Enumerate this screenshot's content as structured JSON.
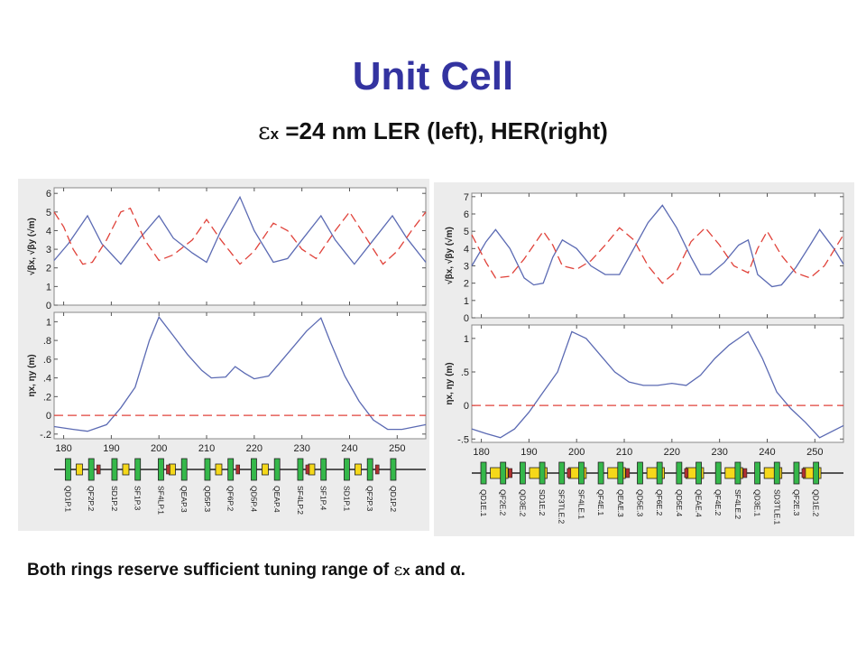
{
  "title": "Unit Cell",
  "subtitle": {
    "epsilon": "ε",
    "epsilon_sub": "x",
    "text": " =24 nm LER (left), HER(right)"
  },
  "footnote": {
    "prefix": "Both rings reserve sufficient tuning range of ",
    "epsilon": "ε",
    "epsilon_sub": "x",
    "suffix": " and α."
  },
  "colors": {
    "title": "#3333a0",
    "beta_x": "#5b6ab3",
    "beta_y": "#e0423a",
    "eta_x": "#5b6ab3",
    "eta_y": "#e0423a",
    "quad": "#35b84a",
    "bend": "#f5d81a",
    "sext": "#a7d5f0"
  },
  "chart_data": [
    {
      "type": "line",
      "name": "LER",
      "x_ticks": [
        180,
        190,
        200,
        210,
        220,
        230,
        240,
        250
      ],
      "x_range": [
        178,
        256
      ],
      "beta": {
        "ylabel": "√βx, √βy (√m)",
        "ylim": [
          0,
          6.3
        ],
        "y_ticks": [
          0,
          1,
          2,
          3,
          4,
          5,
          6
        ],
        "series": [
          {
            "values": [
              [
                178,
                2.4
              ],
              [
                181,
                3.3
              ],
              [
                185,
                4.8
              ],
              [
                188,
                3.3
              ],
              [
                192,
                2.2
              ],
              [
                196,
                3.6
              ],
              [
                200,
                4.8
              ],
              [
                203,
                3.6
              ],
              [
                207,
                2.8
              ],
              [
                210,
                2.3
              ],
              [
                213,
                4.0
              ],
              [
                217,
                5.8
              ],
              [
                220,
                4.0
              ],
              [
                224,
                2.3
              ],
              [
                227,
                2.5
              ],
              [
                230,
                3.5
              ],
              [
                234,
                4.8
              ],
              [
                237,
                3.5
              ],
              [
                241,
                2.2
              ],
              [
                245,
                3.5
              ],
              [
                249,
                4.8
              ],
              [
                252,
                3.6
              ],
              [
                256,
                2.3
              ]
            ]
          },
          {
            "values": [
              [
                178,
                5.0
              ],
              [
                180,
                4.2
              ],
              [
                182,
                3.0
              ],
              [
                184,
                2.2
              ],
              [
                186,
                2.3
              ],
              [
                189,
                3.5
              ],
              [
                192,
                5.0
              ],
              [
                194,
                5.2
              ],
              [
                197,
                3.5
              ],
              [
                200,
                2.4
              ],
              [
                203,
                2.7
              ],
              [
                207,
                3.5
              ],
              [
                210,
                4.6
              ],
              [
                213,
                3.5
              ],
              [
                217,
                2.2
              ],
              [
                220,
                2.9
              ],
              [
                224,
                4.4
              ],
              [
                227,
                4.0
              ],
              [
                230,
                3.0
              ],
              [
                233,
                2.5
              ],
              [
                237,
                4.0
              ],
              [
                240,
                5.0
              ],
              [
                242,
                4.2
              ],
              [
                245,
                3.0
              ],
              [
                247,
                2.2
              ],
              [
                250,
                2.9
              ],
              [
                253,
                4.0
              ],
              [
                256,
                5.0
              ]
            ]
          }
        ]
      },
      "eta": {
        "ylabel": "ηx, ηy (m)",
        "ylim": [
          -0.25,
          1.1
        ],
        "y_ticks": [
          -0.2,
          0,
          0.2,
          0.4,
          0.6,
          0.8,
          1
        ],
        "y_tick_labels": [
          "-.2",
          "0",
          ".2",
          ".4",
          ".6",
          ".8",
          "1"
        ],
        "series": [
          {
            "values": [
              [
                178,
                -0.12
              ],
              [
                182,
                -0.15
              ],
              [
                185,
                -0.17
              ],
              [
                189,
                -0.1
              ],
              [
                192,
                0.08
              ],
              [
                195,
                0.3
              ],
              [
                198,
                0.8
              ],
              [
                200,
                1.05
              ],
              [
                203,
                0.85
              ],
              [
                206,
                0.65
              ],
              [
                209,
                0.48
              ],
              [
                211,
                0.4
              ],
              [
                214,
                0.41
              ],
              [
                216,
                0.52
              ],
              [
                218,
                0.45
              ],
              [
                220,
                0.39
              ],
              [
                223,
                0.42
              ],
              [
                226,
                0.6
              ],
              [
                229,
                0.78
              ],
              [
                231,
                0.9
              ],
              [
                234,
                1.04
              ],
              [
                236,
                0.78
              ],
              [
                239,
                0.42
              ],
              [
                242,
                0.15
              ],
              [
                245,
                -0.05
              ],
              [
                248,
                -0.15
              ],
              [
                251,
                -0.15
              ],
              [
                256,
                -0.1
              ]
            ]
          },
          {
            "values": [
              [
                178,
                0
              ],
              [
                256,
                0
              ]
            ]
          }
        ]
      },
      "lattice_labels": [
        "QD1P.1",
        "QF2P.2",
        "SD1P.2",
        "SF1P.3",
        "SF4LP.1",
        "QEAP.3",
        "QD5P.3",
        "QF6P.2",
        "QD5P.4",
        "QEAP.4",
        "SF4LP.2",
        "SF1P.4",
        "SD1P.1",
        "QF2P.3",
        "QD1P.2"
      ]
    },
    {
      "type": "line",
      "name": "HER",
      "x_ticks": [
        180,
        190,
        200,
        210,
        220,
        230,
        240,
        250
      ],
      "x_range": [
        178,
        256
      ],
      "beta": {
        "ylabel": "√βx, √βy (√m)",
        "ylim": [
          0,
          7.2
        ],
        "y_ticks": [
          0,
          1,
          2,
          3,
          4,
          5,
          6,
          7
        ],
        "series": [
          {
            "values": [
              [
                178,
                3.0
              ],
              [
                181,
                4.4
              ],
              [
                183,
                5.1
              ],
              [
                186,
                4.0
              ],
              [
                189,
                2.3
              ],
              [
                191,
                1.9
              ],
              [
                193,
                2.0
              ],
              [
                195,
                3.5
              ],
              [
                197,
                4.5
              ],
              [
                200,
                4.0
              ],
              [
                203,
                3.0
              ],
              [
                206,
                2.5
              ],
              [
                209,
                2.5
              ],
              [
                212,
                4.0
              ],
              [
                215,
                5.5
              ],
              [
                218,
                6.5
              ],
              [
                221,
                5.2
              ],
              [
                224,
                3.5
              ],
              [
                226,
                2.5
              ],
              [
                228,
                2.5
              ],
              [
                231,
                3.2
              ],
              [
                234,
                4.2
              ],
              [
                236,
                4.5
              ],
              [
                238,
                2.5
              ],
              [
                241,
                1.8
              ],
              [
                243,
                1.9
              ],
              [
                246,
                2.9
              ],
              [
                249,
                4.2
              ],
              [
                251,
                5.1
              ],
              [
                254,
                4.0
              ],
              [
                256,
                3.1
              ]
            ]
          },
          {
            "values": [
              [
                178,
                4.8
              ],
              [
                181,
                3.2
              ],
              [
                183,
                2.3
              ],
              [
                186,
                2.4
              ],
              [
                189,
                3.4
              ],
              [
                193,
                5.0
              ],
              [
                195,
                4.2
              ],
              [
                197,
                3.0
              ],
              [
                200,
                2.8
              ],
              [
                203,
                3.3
              ],
              [
                206,
                4.2
              ],
              [
                209,
                5.2
              ],
              [
                212,
                4.5
              ],
              [
                215,
                3.0
              ],
              [
                218,
                2.0
              ],
              [
                221,
                2.7
              ],
              [
                224,
                4.4
              ],
              [
                227,
                5.2
              ],
              [
                230,
                4.2
              ],
              [
                233,
                3.0
              ],
              [
                236,
                2.6
              ],
              [
                238,
                4.0
              ],
              [
                240,
                5.0
              ],
              [
                243,
                3.6
              ],
              [
                246,
                2.6
              ],
              [
                249,
                2.3
              ],
              [
                252,
                3.0
              ],
              [
                256,
                4.8
              ]
            ]
          }
        ]
      },
      "eta": {
        "ylabel": "ηx, ηy (m)",
        "ylim": [
          -0.55,
          1.2
        ],
        "y_ticks": [
          -0.5,
          0,
          0.5,
          1
        ],
        "y_tick_labels": [
          "-.5",
          "0",
          ".5",
          "1"
        ],
        "series": [
          {
            "values": [
              [
                178,
                -0.35
              ],
              [
                181,
                -0.42
              ],
              [
                184,
                -0.48
              ],
              [
                187,
                -0.35
              ],
              [
                190,
                -0.1
              ],
              [
                193,
                0.2
              ],
              [
                196,
                0.5
              ],
              [
                199,
                1.1
              ],
              [
                202,
                1.0
              ],
              [
                205,
                0.75
              ],
              [
                208,
                0.5
              ],
              [
                211,
                0.35
              ],
              [
                214,
                0.3
              ],
              [
                217,
                0.3
              ],
              [
                220,
                0.33
              ],
              [
                223,
                0.3
              ],
              [
                226,
                0.45
              ],
              [
                229,
                0.7
              ],
              [
                232,
                0.9
              ],
              [
                234,
                1.0
              ],
              [
                236,
                1.1
              ],
              [
                239,
                0.7
              ],
              [
                242,
                0.2
              ],
              [
                245,
                -0.05
              ],
              [
                248,
                -0.25
              ],
              [
                251,
                -0.48
              ],
              [
                256,
                -0.3
              ]
            ]
          },
          {
            "values": [
              [
                178,
                0
              ],
              [
                256,
                0
              ]
            ]
          }
        ]
      },
      "lattice_labels": [
        "QD1E.1",
        "QF2E.2",
        "QD3E.2",
        "SD1E.2",
        "SF3TLE.2",
        "SF4LE.1",
        "QF4E.1",
        "QEAE.3",
        "QD5E.3",
        "QF6E.2",
        "QD5E.4",
        "QEAE.4",
        "QF4E.2",
        "SF4LE.2",
        "QD3E.1",
        "SD3TLE.1",
        "QF2E.3",
        "QD1E.2"
      ]
    }
  ]
}
